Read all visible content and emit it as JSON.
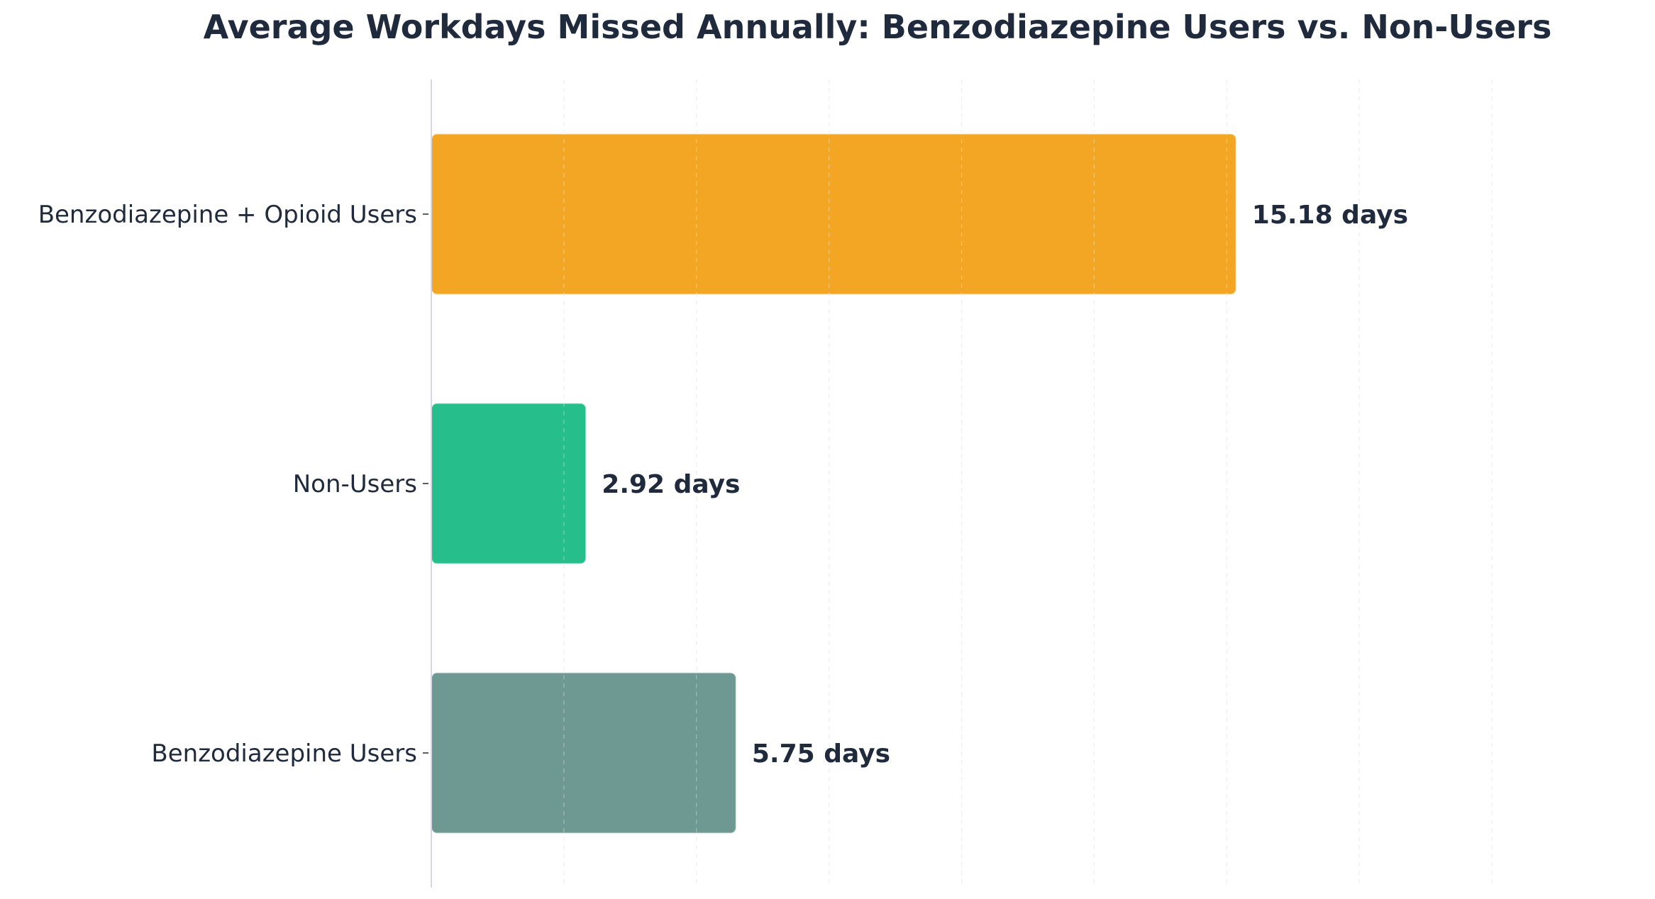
{
  "chart_data": {
    "type": "bar",
    "orientation": "horizontal",
    "title": "Average Workdays Missed Annually: Benzodiazepine Users vs. Non-Users",
    "xlabel": "",
    "ylabel": "",
    "categories": [
      "Benzodiazepine Users",
      "Non-Users",
      "Benzodiazepine + Opioid Users"
    ],
    "values": [
      5.75,
      2.92,
      15.18
    ],
    "value_labels": [
      "5.75 days",
      "2.92 days",
      "15.18 days"
    ],
    "colors": [
      "#6e9892",
      "#26bf8c",
      "#f3a524"
    ],
    "xlim": [
      0,
      22.5
    ],
    "x_grid_step": 2.5,
    "grid": "x, dashed",
    "legend": "none",
    "text_color": "#1f2a3c"
  }
}
